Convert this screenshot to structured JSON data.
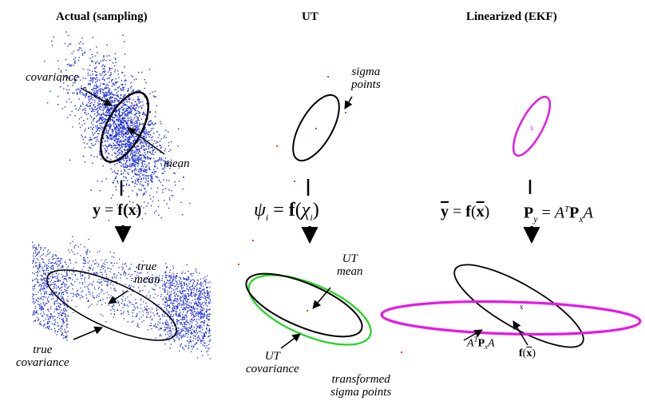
{
  "columns": {
    "actual": {
      "title": "Actual (sampling)"
    },
    "ut": {
      "title": "UT"
    },
    "ekf": {
      "title": "Linearized (EKF)"
    }
  },
  "labels": {
    "covariance": "covariance",
    "mean": "mean",
    "sigma_points_1": "sigma",
    "sigma_points_2": "points",
    "true_mean_1": "true",
    "true_mean_2": "mean",
    "true_cov_1": "true",
    "true_cov_2": "covariance",
    "ut_mean_1": "UT",
    "ut_mean_2": "mean",
    "ut_cov_1": "UT",
    "ut_cov_2": "covariance",
    "transformed_1": "transformed",
    "transformed_2": "sigma points"
  },
  "equations": {
    "actual_y": "y",
    "actual_eq": "=",
    "actual_f": "f",
    "actual_x": "(x)",
    "ut_psi": "ψ",
    "ut_i": "i",
    "ut_eq": "=",
    "ut_f": "f",
    "ut_open": "(",
    "ut_chi": "χ",
    "ut_close": ")",
    "ekf_ybar": "y",
    "ekf_eq": "=",
    "ekf_f": "f",
    "ekf_xbar": "x",
    "ekf_P": "P",
    "ekf_y_sub": "y",
    "ekf_eq2": "=",
    "ekf_A": "A",
    "ekf_T": "T",
    "ekf_P2": "P",
    "ekf_x_sub": "x",
    "ekf_A2": "A",
    "ekf_lbl_A": "A",
    "ekf_lbl_T": "T",
    "ekf_lbl_P": "P",
    "ekf_lbl_x": "x",
    "ekf_lbl_A2": "A",
    "ekf_lbl_f": "f",
    "ekf_lbl_xbar": "x"
  },
  "colors": {
    "samples": "#1f2fd6",
    "sigma": "#e0452a",
    "ut_ellipse": "#1fd61f",
    "ekf": "#e619e6",
    "ink": "#000000"
  }
}
